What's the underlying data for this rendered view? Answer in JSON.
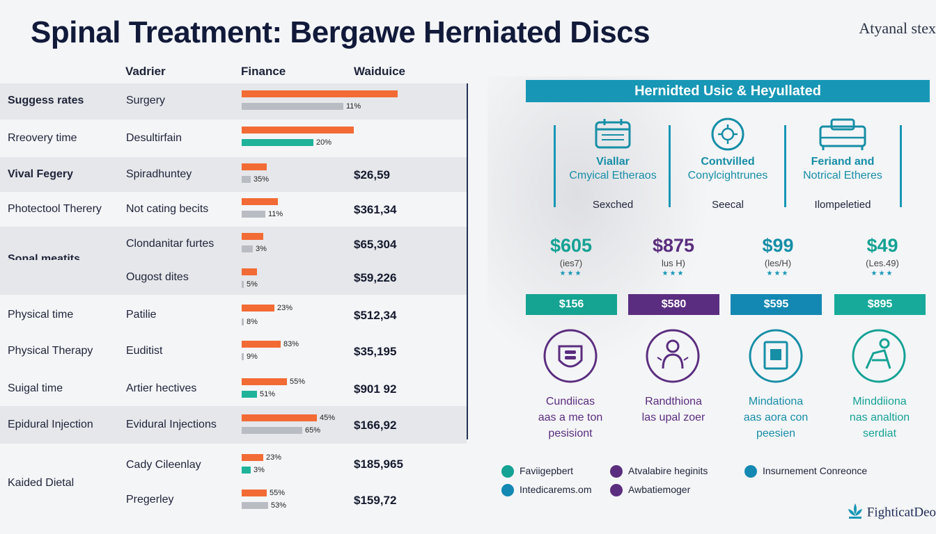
{
  "header": {
    "title": "Spinal Treatment: Bergawe Herniated Discs",
    "brand": "Atyanal stex"
  },
  "table": {
    "columns": [
      "Vadrier",
      "Finance",
      "Waiduice"
    ],
    "rows": [
      {
        "label": "Suggess rates",
        "treatment": "Surgery",
        "bars": [
          {
            "color": "orange",
            "value": 100
          },
          {
            "color": "gray",
            "value": 65,
            "pct": "11%"
          }
        ],
        "cost": ""
      },
      {
        "label": "Rreovery time",
        "treatment": "Desultirfain",
        "bars": [
          {
            "color": "orange",
            "value": 72
          },
          {
            "color": "teal",
            "value": 46,
            "pct": "20%"
          }
        ],
        "cost": ""
      },
      {
        "label": "Vival Fegery",
        "treatment": "Spiradhuntey",
        "bars": [
          {
            "color": "orange",
            "value": 16
          },
          {
            "color": "gray",
            "value": 6,
            "pct": "35%"
          }
        ],
        "cost": "$26,59"
      },
      {
        "label": "Photectool Therery",
        "treatment": "Not cating becits",
        "bars": [
          {
            "color": "orange",
            "value": 23
          },
          {
            "color": "gray",
            "value": 15,
            "pct": "11%"
          }
        ],
        "cost": "$361,34"
      },
      {
        "label": "Sonal meatits",
        "treatment": "Clondanitar furtes",
        "bars": [
          {
            "color": "orange",
            "value": 14
          },
          {
            "color": "gray",
            "value": 7,
            "pct": "3%"
          }
        ],
        "cost": "$65,304"
      },
      {
        "label": "",
        "treatment": "Ougost dites",
        "bars": [
          {
            "color": "orange",
            "value": 10
          },
          {
            "color": "gray",
            "value": 1,
            "pct": "5%"
          }
        ],
        "cost": "$59,226"
      },
      {
        "label": "Physical time",
        "treatment": "Patilie",
        "bars": [
          {
            "color": "orange",
            "value": 21,
            "pct": "23%"
          },
          {
            "color": "gray",
            "value": 1,
            "pct": "8%"
          }
        ],
        "cost": "$512,34"
      },
      {
        "label": "Physical Therapy",
        "treatment": "Euditist",
        "bars": [
          {
            "color": "orange",
            "value": 25,
            "pct": "83%"
          },
          {
            "color": "gray",
            "value": 1,
            "pct": "9%"
          }
        ],
        "cost": "$35,195"
      },
      {
        "label": "Suigal time",
        "treatment": "Artier hectives",
        "bars": [
          {
            "color": "orange",
            "value": 29,
            "pct": "55%"
          },
          {
            "color": "teal",
            "value": 10,
            "pct": "51%"
          }
        ],
        "cost": "$901 92"
      },
      {
        "label": "Epidural Injection",
        "treatment": "Evidural Injections",
        "bars": [
          {
            "color": "orange",
            "value": 48,
            "pct": "45%"
          },
          {
            "color": "gray",
            "value": 39,
            "pct": "65%"
          }
        ],
        "cost": "$166,92"
      },
      {
        "label": "Kaided Dietal",
        "treatment": "Cady Cileenlay",
        "bars": [
          {
            "color": "orange",
            "value": 14,
            "pct": "23%"
          },
          {
            "color": "teal",
            "value": 6,
            "pct": "3%"
          }
        ],
        "cost": "$185,965"
      },
      {
        "label": "",
        "treatment": "Pregerley",
        "bars": [
          {
            "color": "orange",
            "value": 16,
            "pct": "55%"
          },
          {
            "color": "gray",
            "value": 17,
            "pct": "53%"
          }
        ],
        "cost": "$159,72"
      }
    ]
  },
  "panel": {
    "banner": "Hernidted Usic & Heyullated",
    "features": [
      {
        "icon": "calendar-icon",
        "title": "Viallar",
        "subtitle": "Cmyical Etheraos",
        "note": "Sexched"
      },
      {
        "icon": "virus-icon",
        "title": "Contvilled",
        "subtitle": "Conylcightrunes",
        "note": "Seecal"
      },
      {
        "icon": "bed-icon",
        "title": "Feriand and",
        "subtitle": "Notrical Etheres",
        "note": "Ilompeletied"
      }
    ],
    "prices": [
      {
        "amount": "$605",
        "sub": "(ies7)",
        "color": "#14a294"
      },
      {
        "amount": "$875",
        "sub": "lus H)",
        "color": "#5a2d7e"
      },
      {
        "amount": "$99",
        "sub": "(les/H)",
        "color": "#168ea6"
      },
      {
        "amount": "$49",
        "sub": "(Les.49)",
        "color": "#14a294"
      }
    ],
    "stars": "★★★",
    "chips": [
      {
        "label": "$156",
        "color": "#15a392"
      },
      {
        "label": "$580",
        "color": "#5b2d80"
      },
      {
        "label": "$595",
        "color": "#1388b3"
      },
      {
        "label": "$895",
        "color": "#17aa9a"
      }
    ],
    "cards": [
      {
        "icon": "spine-icon",
        "color": "#5a2d7e",
        "lines": [
          "Cundiicas",
          "aas a me ton",
          "pesisiont"
        ]
      },
      {
        "icon": "patient-pain-icon",
        "color": "#5a2d7e",
        "lines": [
          "Randthiona",
          "las upal zoer",
          ""
        ]
      },
      {
        "icon": "therapy-room-icon",
        "color": "#168ea6",
        "lines": [
          "Mindationa",
          "aas aora con",
          "peesien"
        ]
      },
      {
        "icon": "caregiver-icon",
        "color": "#14a294",
        "lines": [
          "Minddiiona",
          "nas analtion",
          "serdiat"
        ]
      }
    ]
  },
  "legend": [
    {
      "label": "Faviigepbert",
      "color": "#14a294"
    },
    {
      "label": "Atvalabire heginits",
      "color": "#5a2d7e"
    },
    {
      "label": "Insurnement Conreonce",
      "color": "#1388b3"
    },
    {
      "label": "Intedicarems.om",
      "color": "#1388b3"
    },
    {
      "label": "Awbatiemoger",
      "color": "#5a2d7e"
    }
  ],
  "footer": {
    "brand": "FighticatDeo"
  },
  "colors": {
    "orange": "#f26b35",
    "teal": "#1fb39a",
    "gray": "#b9bcc2",
    "blue": "#1797b5",
    "purple": "#5a2d7e",
    "navy": "#121a3a"
  }
}
